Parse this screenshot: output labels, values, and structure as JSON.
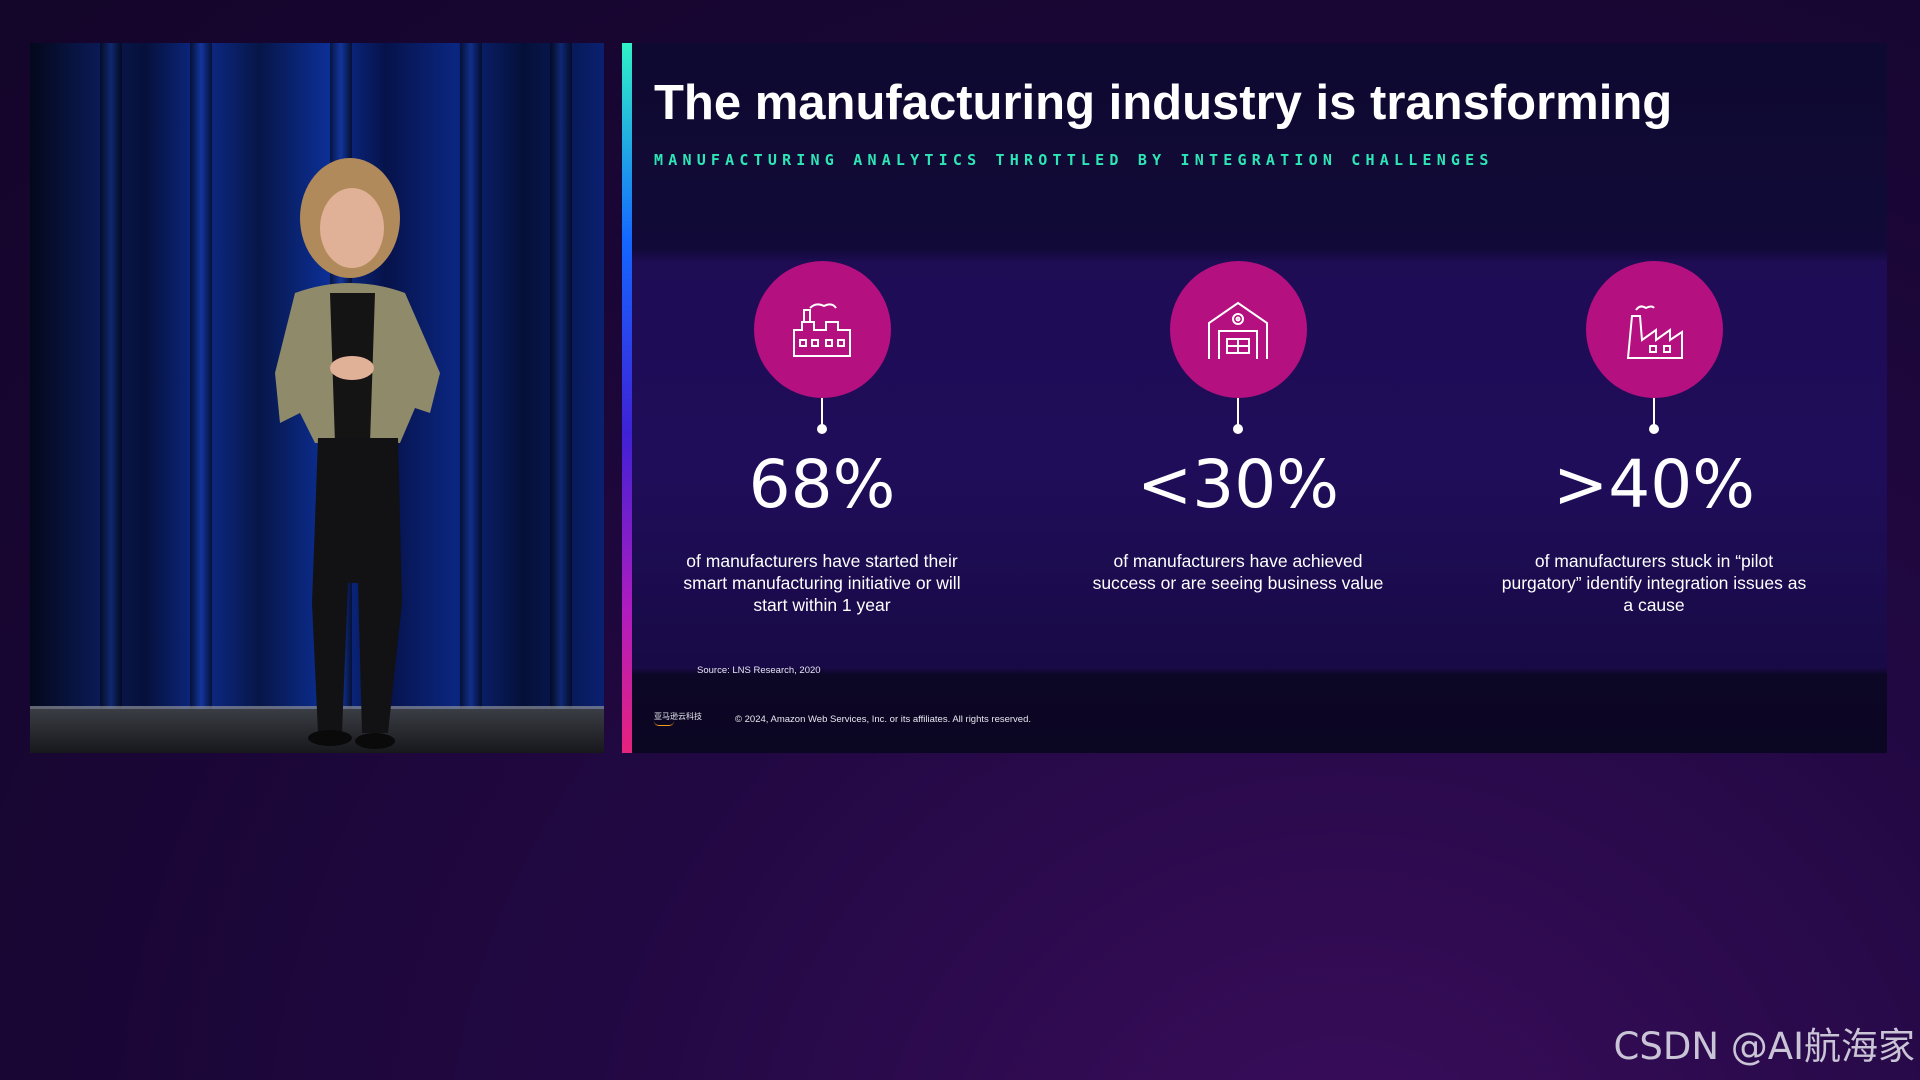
{
  "slide": {
    "title": "The manufacturing industry is transforming",
    "subtitle": "MANUFACTURING ANALYTICS THROTTLED BY INTEGRATION CHALLENGES",
    "stats": [
      {
        "icon": "factory-icon",
        "value": "68%",
        "description": "of manufacturers have started their smart manufacturing initiative or will start within 1 year"
      },
      {
        "icon": "warehouse-gear-icon",
        "value": "<30%",
        "description": "of manufacturers have achieved success or are seeing business value"
      },
      {
        "icon": "factory-building-icon",
        "value": ">40%",
        "description": "of manufacturers stuck in “pilot purgatory” identify integration issues as a cause"
      }
    ],
    "source": "Source:  LNS Research, 2020",
    "logo_text": "亚马逊云科技",
    "copyright": "© 2024, Amazon Web Services, Inc. or its affiliates. All rights reserved."
  },
  "watermark": "CSDN @AI航海家",
  "colors": {
    "accent_teal": "#2ee6b5",
    "circle_magenta": "#b5107f"
  }
}
